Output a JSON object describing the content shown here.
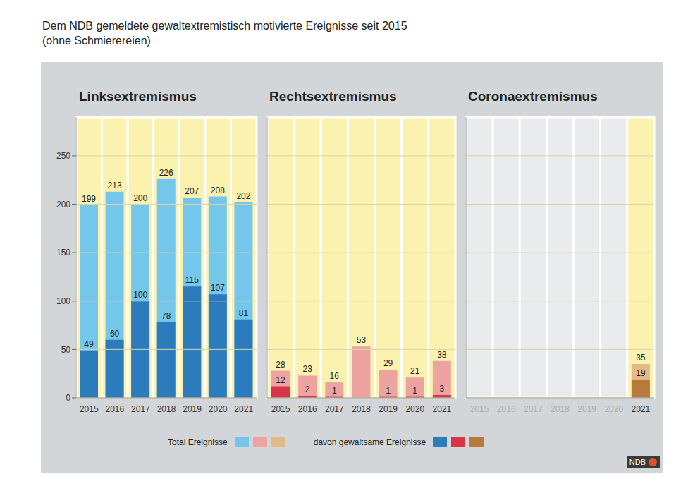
{
  "title": "Dem NDB gemeldete gewaltextremistisch motivierte Ereignisse seit 2015",
  "subtitle": "(ohne Schmierereien)",
  "source": "NDB",
  "chart_data": [
    {
      "type": "bar",
      "title": "Linksextremismus",
      "categories": [
        "2015",
        "2016",
        "2017",
        "2018",
        "2019",
        "2020",
        "2021"
      ],
      "series": [
        {
          "name": "Total Ereignisse",
          "color": "#74c6ea",
          "values": [
            199,
            213,
            200,
            226,
            207,
            208,
            202
          ]
        },
        {
          "name": "davon gewaltsame Ereignisse",
          "color": "#2b7bbd",
          "values": [
            49,
            60,
            100,
            78,
            115,
            107,
            81
          ]
        }
      ],
      "ylim": [
        0,
        290
      ],
      "yticks": [
        0,
        50,
        100,
        150,
        200,
        250
      ],
      "grid": true,
      "data_labels": true
    },
    {
      "type": "bar",
      "title": "Rechtsextremismus",
      "categories": [
        "2015",
        "2016",
        "2017",
        "2018",
        "2019",
        "2020",
        "2021"
      ],
      "series": [
        {
          "name": "Total Ereignisse",
          "color": "#eea3a3",
          "values": [
            28,
            23,
            16,
            53,
            29,
            21,
            38
          ]
        },
        {
          "name": "davon gewaltsame Ereignisse",
          "color": "#d8344a",
          "values": [
            12,
            2,
            1,
            0,
            1,
            1,
            3
          ]
        }
      ],
      "ylim": [
        0,
        290
      ],
      "yticks": [
        0,
        50,
        100,
        150,
        200,
        250
      ],
      "grid": true,
      "data_labels": true,
      "tick_labels": "x"
    },
    {
      "type": "bar",
      "title": "Coronaextremismus",
      "categories": [
        "2015",
        "2016",
        "2017",
        "2018",
        "2019",
        "2020",
        "2021"
      ],
      "series": [
        {
          "name": "Total Ereignisse",
          "color": "#e3b98a",
          "values": [
            null,
            null,
            null,
            null,
            null,
            null,
            35
          ]
        },
        {
          "name": "davon gewaltsame Ereignisse",
          "color": "#b77a3b",
          "values": [
            null,
            null,
            null,
            null,
            null,
            null,
            19
          ]
        }
      ],
      "ylim": [
        0,
        290
      ],
      "yticks": [
        0,
        50,
        100,
        150,
        200,
        250
      ],
      "grid": true,
      "data_labels": true,
      "tick_labels": "x"
    }
  ]
}
